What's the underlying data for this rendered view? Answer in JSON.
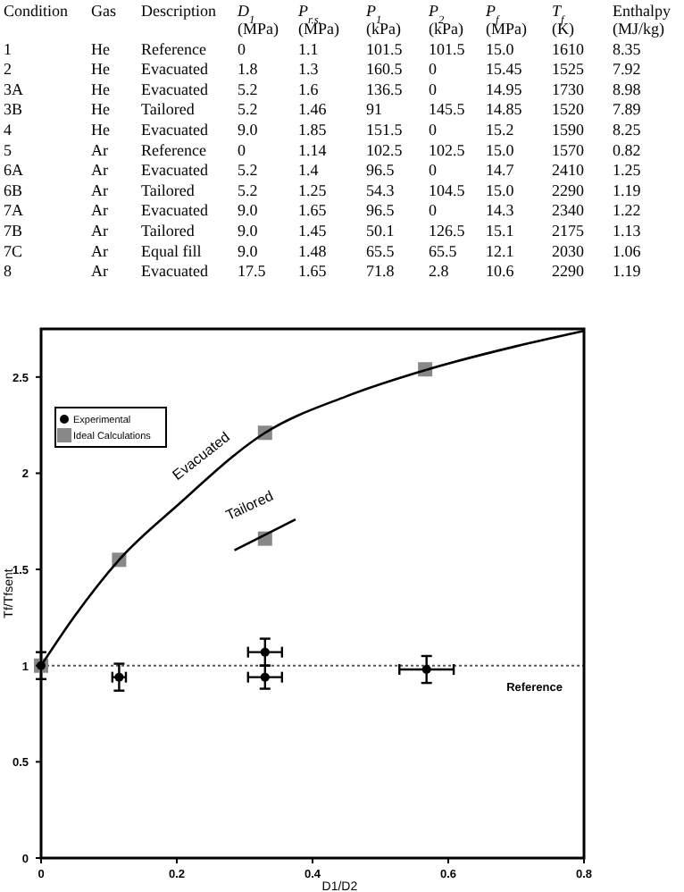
{
  "chart_data": {
    "type": "scatter",
    "xlabel": "D1/D2",
    "ylabel": "Tf/Tfsent",
    "xlim": [
      0,
      0.8
    ],
    "ylim": [
      0,
      2.75
    ],
    "xticks": [
      0,
      0.2,
      0.4,
      0.6,
      0.8
    ],
    "yticks": [
      0,
      0.5,
      1,
      1.5,
      2,
      2.5
    ],
    "legend": "top left",
    "series": [
      {
        "type": "line",
        "color": "#000000",
        "marker": "none",
        "x": [
          0,
          0.05,
          0.115,
          0.2,
          0.33,
          0.45,
          0.57,
          0.7,
          0.8
        ],
        "values": [
          1,
          1.26,
          1.55,
          1.83,
          2.21,
          2.4,
          2.54,
          2.66,
          2.74
        ]
      },
      {
        "type": "line",
        "color": "#000000",
        "marker": "none",
        "x": [
          0.285,
          0.375
        ],
        "values": [
          1.6,
          1.76
        ]
      },
      {
        "name": "Experimental",
        "color": "#000000",
        "marker": "circle",
        "x": [
          0,
          0.115,
          0.33,
          0.33,
          0.568
        ],
        "values": [
          1,
          0.94,
          1.07,
          0.94,
          0.98
        ],
        "errors": [
          0.07,
          0.07,
          0.07,
          0.06,
          0.07
        ],
        "xerrors": [
          null,
          0.01,
          0.025,
          0.025,
          0.04
        ]
      },
      {
        "name": "Ideal Calculations",
        "color": "#888888",
        "marker": "square",
        "x": [
          0,
          0.115,
          0.33,
          0.33,
          0.566
        ],
        "values": [
          1,
          1.55,
          2.21,
          1.66,
          2.54
        ]
      }
    ],
    "ref_lines": [
      {
        "axis": "y",
        "value": 1,
        "label": "Reference",
        "color": "#555555",
        "line_style": "dotted"
      }
    ],
    "annotations": [
      "Condition",
      "Gas",
      "Description",
      "D$_{1}$ (MPa)",
      "P$_{r.s.}$ (MPa)",
      "P$_{1}$ (kPa)",
      "P$_{2}$ (kPa)",
      "P$_{f}$ (MPa)",
      "T$_{f}$ (K)",
      "Enthalpy (MJ/kg)",
      "1",
      "He",
      "Reference",
      "0",
      "1.1",
      "101.5",
      "101.5",
      "15.0",
      "1610",
      "8.35",
      "2",
      "He",
      "Evacuated",
      "1.8",
      "1.3",
      "160.5",
      "0",
      "15.45",
      "1525",
      "7.92",
      "3A",
      "He",
      "Evacuated",
      "5.2",
      "1.6",
      "136.5",
      "0",
      "14.95",
      "1730",
      "8.98",
      "3B",
      "He",
      "Tailored",
      "5.2",
      "1.46",
      "91",
      "145.5",
      "14.85",
      "1520",
      "7.89",
      "4",
      "He",
      "Evacuated",
      "9.0",
      "1.85",
      "151.5",
      "0",
      "15.2",
      "1590",
      "8.25",
      "5",
      "Ar",
      "Reference",
      "0",
      "1.14",
      "102.5",
      "102.5",
      "15.0",
      "1570",
      "0.82",
      "6A",
      "Ar",
      "Evacuated",
      "5.2",
      "1.4",
      "96.5",
      "0",
      "14.7",
      "2410",
      "1.25",
      "6B",
      "Ar",
      "Tailored",
      "5.2",
      "1.25",
      "54.3",
      "104.5",
      "15.0",
      "2290",
      "1.19",
      "7A",
      "Ar",
      "Evacuated",
      "9.0",
      "1.65",
      "96.5",
      "0",
      "14.3",
      "2340",
      "1.22",
      "7B",
      "Ar",
      "Tailored",
      "9.0",
      "1.45",
      "50.1",
      "126.5",
      "15.1",
      "2175",
      "1.13",
      "7C",
      "Ar",
      "Equal fill",
      "9.0",
      "1.48",
      "65.5",
      "65.5",
      "12.1",
      "2030",
      "1.06",
      "8",
      "Ar",
      "Evacuated",
      "17.5",
      "1.65",
      "71.8",
      "2.8",
      "10.6",
      "2290",
      "1.19",
      "Evacuated",
      "Tailored"
    ]
  }
}
